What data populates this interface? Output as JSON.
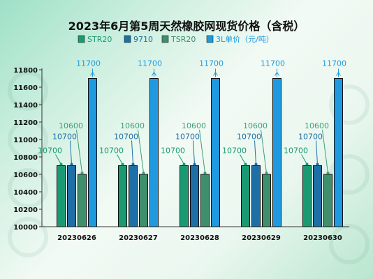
{
  "chart_data": {
    "type": "bar",
    "title": "2023年6月第5周天然橡胶网现货价格（含税）",
    "categories": [
      "20230626",
      "20230627",
      "20230628",
      "20230629",
      "20230630"
    ],
    "series": [
      {
        "name": "STR20",
        "color": "#1a9a72",
        "values": [
          10700,
          10700,
          10700,
          10700,
          10700
        ],
        "labelColor": "#1a9a72"
      },
      {
        "name": "9710",
        "color": "#1d6fa6",
        "values": [
          10700,
          10700,
          10700,
          10700,
          10700
        ],
        "labelColor": "#1d6fa6"
      },
      {
        "name": "TSR20",
        "color": "#3f8f6c",
        "values": [
          10600,
          10600,
          10600,
          10600,
          10600
        ],
        "labelColor": "#3f9f78"
      },
      {
        "name": "3L单价（元/吨）",
        "color": "#1f9ae0",
        "values": [
          11700,
          11700,
          11700,
          11700,
          11700
        ],
        "labelColor": "#1f9ae0"
      }
    ],
    "yticks": [
      10000,
      10200,
      10400,
      10600,
      10800,
      11000,
      11200,
      11400,
      11600,
      11800
    ],
    "ylim": [
      10000,
      11800
    ],
    "grid": false,
    "legend_position": "top"
  }
}
